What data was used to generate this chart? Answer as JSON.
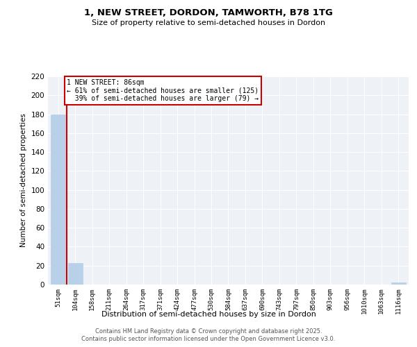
{
  "title": "1, NEW STREET, DORDON, TAMWORTH, B78 1TG",
  "subtitle": "Size of property relative to semi-detached houses in Dordon",
  "xlabel": "Distribution of semi-detached houses by size in Dordon",
  "ylabel": "Number of semi-detached properties",
  "property_label": "1 NEW STREET: 86sqm",
  "annotation_line1": "← 61% of semi-detached houses are smaller (125)",
  "annotation_line2": "  39% of semi-detached houses are larger (79) →",
  "bar_color": "#b8d0e8",
  "vline_color": "#cc0000",
  "annotation_box_color": "#cc0000",
  "background_color": "#eef2f7",
  "grid_color": "#ffffff",
  "bins": [
    51,
    104,
    158,
    211,
    264,
    317,
    371,
    424,
    477,
    530,
    584,
    637,
    690,
    743,
    797,
    850,
    903,
    956,
    1010,
    1063,
    1116
  ],
  "counts": [
    180,
    23,
    0,
    0,
    0,
    0,
    0,
    0,
    0,
    0,
    0,
    0,
    0,
    0,
    0,
    0,
    0,
    0,
    0,
    0,
    2
  ],
  "ylim": [
    0,
    220
  ],
  "yticks": [
    0,
    20,
    40,
    60,
    80,
    100,
    120,
    140,
    160,
    180,
    200,
    220
  ],
  "figsize": [
    6.0,
    5.0
  ],
  "dpi": 100,
  "footer_line1": "Contains HM Land Registry data © Crown copyright and database right 2025.",
  "footer_line2": "Contains public sector information licensed under the Open Government Licence v3.0."
}
